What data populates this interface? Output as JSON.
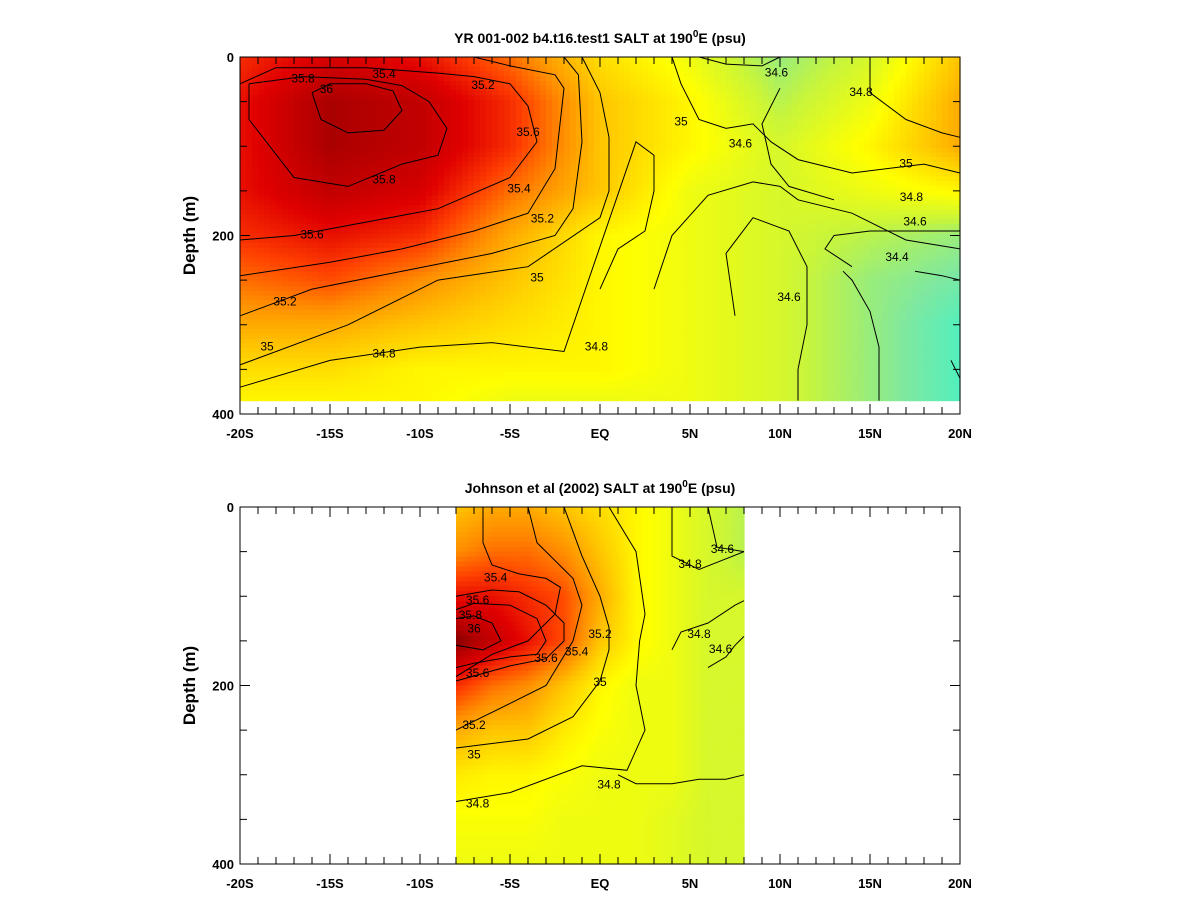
{
  "chart_data": [
    {
      "type": "heatmap",
      "title": "YR 001-002 b4.t16.test1 SALT at 190",
      "title_sup": "0",
      "title_suffix": "E (psu)",
      "ylabel": "Depth (m)",
      "xlabel": "",
      "x_ticks": [
        "-20S",
        "-15S",
        "-10S",
        "-5S",
        "EQ",
        "5N",
        "10N",
        "15N",
        "20N"
      ],
      "y_ticks": [
        "0",
        "200",
        "400"
      ],
      "xlim": [
        -20,
        20
      ],
      "ylim": [
        0,
        400
      ],
      "y_inverted": true,
      "data_x_range": [
        -20,
        20
      ],
      "data_depth_max": 385,
      "colormap": [
        "#2ff5d5",
        "#7fe8a0",
        "#c8f53a",
        "#ffff00",
        "#ffc800",
        "#ff8c00",
        "#ff4000",
        "#e00000",
        "#b00000",
        "#600000"
      ],
      "salinity_range": [
        34.2,
        36.2
      ],
      "x": [
        -20,
        -15,
        -10,
        -5,
        0,
        5,
        10,
        15,
        20
      ],
      "depth": [
        0,
        50,
        100,
        150,
        200,
        250,
        300,
        350,
        385
      ],
      "values": [
        [
          35.6,
          35.8,
          35.7,
          35.4,
          35.0,
          34.8,
          34.5,
          34.7,
          35.1
        ],
        [
          35.7,
          36.0,
          35.9,
          35.6,
          35.1,
          34.9,
          34.6,
          34.8,
          35.2
        ],
        [
          35.7,
          36.0,
          35.9,
          35.6,
          35.1,
          34.9,
          34.7,
          34.9,
          35.2
        ],
        [
          35.7,
          35.9,
          35.8,
          35.4,
          35.1,
          34.8,
          34.7,
          34.8,
          34.9
        ],
        [
          35.6,
          35.7,
          35.6,
          35.2,
          34.9,
          34.8,
          34.7,
          34.6,
          34.5
        ],
        [
          35.4,
          35.5,
          35.3,
          35.1,
          34.9,
          34.8,
          34.7,
          34.5,
          34.4
        ],
        [
          35.2,
          35.2,
          35.1,
          35.0,
          34.9,
          34.8,
          34.7,
          34.5,
          34.3
        ],
        [
          35.0,
          35.0,
          34.9,
          34.9,
          34.9,
          34.8,
          34.7,
          34.5,
          34.3
        ],
        [
          34.9,
          34.9,
          34.9,
          34.8,
          34.8,
          34.8,
          34.7,
          34.5,
          34.3
        ]
      ],
      "contour_labels": [
        {
          "text": "35.8",
          "x": -16.5,
          "depth": 25
        },
        {
          "text": "36",
          "x": -15.2,
          "depth": 37
        },
        {
          "text": "35.4",
          "x": -12.0,
          "depth": 20
        },
        {
          "text": "35.2",
          "x": -6.5,
          "depth": 32
        },
        {
          "text": "35.6",
          "x": -4.0,
          "depth": 85
        },
        {
          "text": "35.8",
          "x": -12.0,
          "depth": 138
        },
        {
          "text": "35.4",
          "x": -4.5,
          "depth": 148
        },
        {
          "text": "35.2",
          "x": -3.2,
          "depth": 182
        },
        {
          "text": "35.6",
          "x": -16.0,
          "depth": 200
        },
        {
          "text": "35",
          "x": -3.5,
          "depth": 248
        },
        {
          "text": "35.2",
          "x": -17.5,
          "depth": 275
        },
        {
          "text": "35",
          "x": -18.5,
          "depth": 325
        },
        {
          "text": "34.8",
          "x": -12.0,
          "depth": 333
        },
        {
          "text": "34.8",
          "x": -0.2,
          "depth": 325
        },
        {
          "text": "35",
          "x": 4.5,
          "depth": 73
        },
        {
          "text": "34.6",
          "x": 7.8,
          "depth": 98
        },
        {
          "text": "34.6",
          "x": 9.8,
          "depth": 18
        },
        {
          "text": "34.8",
          "x": 14.5,
          "depth": 40
        },
        {
          "text": "35",
          "x": 17.0,
          "depth": 120
        },
        {
          "text": "34.8",
          "x": 17.3,
          "depth": 158
        },
        {
          "text": "34.6",
          "x": 17.5,
          "depth": 185
        },
        {
          "text": "34.4",
          "x": 16.5,
          "depth": 225
        },
        {
          "text": "34.6",
          "x": 10.5,
          "depth": 270
        }
      ],
      "contours": [
        {
          "x": [
            -19.5,
            -16.5,
            -13,
            -11,
            -9.5,
            -8.5,
            -9,
            -11,
            -14,
            -17,
            -19.5,
            -19.5
          ],
          "depth": [
            30,
            22,
            25,
            32,
            50,
            80,
            110,
            120,
            145,
            135,
            70,
            30
          ]
        },
        {
          "x": [
            -16,
            -15,
            -13,
            -11.5,
            -11,
            -12,
            -14,
            -15.5,
            -16
          ],
          "depth": [
            40,
            30,
            30,
            38,
            60,
            82,
            85,
            70,
            40
          ]
        },
        {
          "x": [
            -20,
            -18,
            -13,
            -9,
            -7,
            -5,
            -4,
            -3.5,
            -5,
            -9,
            -13,
            -17,
            -20
          ],
          "depth": [
            30,
            12,
            12,
            18,
            22,
            30,
            55,
            95,
            135,
            170,
            185,
            200,
            205
          ]
        },
        {
          "x": [
            -7,
            -5,
            -2.5,
            -2,
            -2.5,
            -4,
            -7,
            -11,
            -15,
            -20
          ],
          "depth": [
            0,
            10,
            20,
            35,
            125,
            175,
            195,
            215,
            230,
            245
          ]
        },
        {
          "x": [
            -2,
            -1.2,
            -1,
            -1.5,
            -2.5,
            -6,
            -11,
            -16,
            -20
          ],
          "depth": [
            0,
            20,
            95,
            170,
            200,
            220,
            240,
            260,
            290
          ]
        },
        {
          "x": [
            -1,
            0,
            0.5,
            0.5,
            0,
            -4,
            -9,
            -14,
            -20
          ],
          "depth": [
            0,
            40,
            90,
            150,
            180,
            235,
            250,
            300,
            345
          ]
        },
        {
          "x": [
            4,
            4.5,
            5.5,
            7,
            8.5,
            9.5,
            11,
            14,
            18,
            20
          ],
          "depth": [
            0,
            30,
            70,
            80,
            75,
            95,
            115,
            130,
            120,
            130
          ]
        },
        {
          "x": [
            0,
            1,
            2.5,
            3,
            3,
            2,
            -2,
            -6,
            -10,
            -15,
            -20
          ],
          "depth": [
            260,
            215,
            195,
            150,
            110,
            95,
            330,
            320,
            325,
            340,
            370
          ]
        },
        {
          "x": [
            3,
            4,
            6,
            8.5,
            10,
            11,
            14,
            17,
            20
          ],
          "depth": [
            260,
            200,
            155,
            140,
            145,
            160,
            175,
            205,
            215
          ]
        },
        {
          "x": [
            5.5,
            7,
            9,
            10
          ],
          "depth": [
            0,
            8,
            10,
            0
          ]
        },
        {
          "x": [
            10,
            9,
            9.5,
            10.5,
            13
          ],
          "depth": [
            35,
            75,
            120,
            145,
            160
          ]
        },
        {
          "x": [
            15,
            15,
            17,
            19,
            20
          ],
          "depth": [
            0,
            40,
            70,
            85,
            90
          ]
        },
        {
          "x": [
            20,
            18,
            15,
            13,
            12.5,
            14
          ],
          "depth": [
            195,
            195,
            195,
            200,
            215,
            235
          ]
        },
        {
          "x": [
            13.5,
            14,
            15,
            15.5,
            15.5
          ],
          "depth": [
            240,
            250,
            285,
            325,
            385
          ]
        },
        {
          "x": [
            7.5,
            7,
            8.5,
            10.5,
            11.5,
            11.5,
            11,
            11
          ],
          "depth": [
            290,
            220,
            180,
            195,
            235,
            300,
            350,
            385
          ]
        },
        {
          "x": [
            17.5,
            19,
            20
          ],
          "depth": [
            240,
            245,
            250
          ]
        },
        {
          "x": [
            19.5,
            20
          ],
          "depth": [
            340,
            360
          ]
        }
      ]
    },
    {
      "type": "heatmap",
      "title": "Johnson et al (2002) SALT at 190",
      "title_sup": "0",
      "title_suffix": "E (psu)",
      "ylabel": "Depth (m)",
      "xlabel": "",
      "x_ticks": [
        "-20S",
        "-15S",
        "-10S",
        "-5S",
        "EQ",
        "5N",
        "10N",
        "15N",
        "20N"
      ],
      "y_ticks": [
        "0",
        "200",
        "400"
      ],
      "xlim": [
        -20,
        20
      ],
      "ylim": [
        0,
        400
      ],
      "y_inverted": true,
      "data_x_range": [
        -8,
        8
      ],
      "data_depth_max": 400,
      "colormap": [
        "#2ff5d5",
        "#7fe8a0",
        "#c8f53a",
        "#ffff00",
        "#ffc800",
        "#ff8c00",
        "#ff4000",
        "#e00000",
        "#b00000",
        "#600000"
      ],
      "salinity_range": [
        34.2,
        36.2
      ],
      "x": [
        -8,
        -6,
        -4,
        -2,
        0,
        2,
        4,
        6,
        8
      ],
      "depth": [
        0,
        50,
        100,
        150,
        200,
        250,
        300,
        350,
        400
      ],
      "values": [
        [
          35.1,
          35.2,
          35.2,
          35.1,
          35.0,
          34.9,
          34.8,
          34.7,
          34.6
        ],
        [
          35.3,
          35.4,
          35.4,
          35.3,
          35.1,
          34.9,
          34.8,
          34.7,
          34.6
        ],
        [
          35.7,
          35.7,
          35.6,
          35.5,
          35.2,
          34.9,
          34.8,
          34.7,
          34.7
        ],
        [
          36.1,
          35.9,
          35.7,
          35.5,
          35.1,
          34.9,
          34.8,
          34.7,
          34.7
        ],
        [
          35.6,
          35.4,
          35.3,
          35.1,
          34.9,
          34.8,
          34.8,
          34.7,
          34.7
        ],
        [
          35.2,
          35.1,
          35.1,
          34.95,
          34.85,
          34.8,
          34.8,
          34.7,
          34.7
        ],
        [
          34.95,
          34.9,
          34.9,
          34.85,
          34.8,
          34.8,
          34.8,
          34.7,
          34.7
        ],
        [
          34.85,
          34.85,
          34.85,
          34.8,
          34.8,
          34.8,
          34.75,
          34.7,
          34.7
        ],
        [
          34.8,
          34.8,
          34.8,
          34.8,
          34.8,
          34.8,
          34.75,
          34.7,
          34.7
        ]
      ],
      "contour_labels": [
        {
          "text": "35.4",
          "x": -5.8,
          "depth": 80
        },
        {
          "text": "35.6",
          "x": -6.8,
          "depth": 105
        },
        {
          "text": "35.8",
          "x": -7.2,
          "depth": 122
        },
        {
          "text": "36",
          "x": -7.0,
          "depth": 137
        },
        {
          "text": "35.6",
          "x": -3.0,
          "depth": 170
        },
        {
          "text": "35.4",
          "x": -1.3,
          "depth": 163
        },
        {
          "text": "35.6",
          "x": -6.8,
          "depth": 187
        },
        {
          "text": "35.2",
          "x": 0.0,
          "depth": 143
        },
        {
          "text": "35",
          "x": 0.0,
          "depth": 197
        },
        {
          "text": "35.2",
          "x": -7.0,
          "depth": 245
        },
        {
          "text": "35",
          "x": -7.0,
          "depth": 278
        },
        {
          "text": "34.8",
          "x": -6.8,
          "depth": 333
        },
        {
          "text": "34.8",
          "x": 0.5,
          "depth": 312
        },
        {
          "text": "34.8",
          "x": 5.0,
          "depth": 65
        },
        {
          "text": "34.6",
          "x": 6.8,
          "depth": 48
        },
        {
          "text": "34.8",
          "x": 5.5,
          "depth": 143
        },
        {
          "text": "34.6",
          "x": 6.7,
          "depth": 160
        }
      ],
      "contours": [
        {
          "x": [
            -6.5,
            -6.5,
            -6,
            -4.5,
            -3,
            -2.2,
            -2.5,
            -4,
            -6,
            -8
          ],
          "depth": [
            0,
            40,
            65,
            75,
            80,
            90,
            120,
            150,
            165,
            190
          ]
        },
        {
          "x": [
            -8,
            -6,
            -4.5,
            -3,
            -2,
            -2,
            -3,
            -5,
            -8
          ],
          "depth": [
            100,
            93,
            95,
            110,
            130,
            150,
            170,
            178,
            195
          ]
        },
        {
          "x": [
            -8,
            -7,
            -5,
            -3.5,
            -3,
            -3.5,
            -5,
            -7,
            -8
          ],
          "depth": [
            115,
            108,
            110,
            125,
            150,
            165,
            168,
            175,
            180
          ]
        },
        {
          "x": [
            -8,
            -7,
            -6,
            -5.5,
            -6.5,
            -8
          ],
          "depth": [
            125,
            122,
            130,
            150,
            160,
            155
          ]
        },
        {
          "x": [
            -4,
            -3.5,
            -1.5,
            -1,
            -1.5,
            -3,
            -5,
            -8
          ],
          "depth": [
            0,
            40,
            80,
            110,
            150,
            200,
            220,
            250
          ]
        },
        {
          "x": [
            -2,
            -1,
            0,
            0.5,
            0.5,
            0,
            -1.5,
            -4,
            -8
          ],
          "depth": [
            0,
            55,
            100,
            135,
            160,
            195,
            235,
            260,
            270
          ]
        },
        {
          "x": [
            0.5,
            2,
            2.5,
            2.2,
            2,
            2.5,
            1.5,
            -1,
            -5,
            -8
          ],
          "depth": [
            0,
            50,
            120,
            150,
            200,
            250,
            295,
            290,
            320,
            330
          ]
        },
        {
          "x": [
            1,
            2,
            4,
            5.5,
            7,
            8
          ],
          "depth": [
            300,
            310,
            310,
            305,
            305,
            300
          ]
        },
        {
          "x": [
            4,
            4,
            5.5,
            7,
            8
          ],
          "depth": [
            0,
            55,
            70,
            58,
            50
          ]
        },
        {
          "x": [
            6,
            6.5,
            8
          ],
          "depth": [
            0,
            45,
            50
          ]
        },
        {
          "x": [
            4,
            4.5,
            6,
            7.5,
            8
          ],
          "depth": [
            160,
            140,
            130,
            110,
            105
          ]
        },
        {
          "x": [
            6,
            7,
            7.5,
            8
          ],
          "depth": [
            180,
            168,
            155,
            145
          ]
        }
      ]
    }
  ]
}
